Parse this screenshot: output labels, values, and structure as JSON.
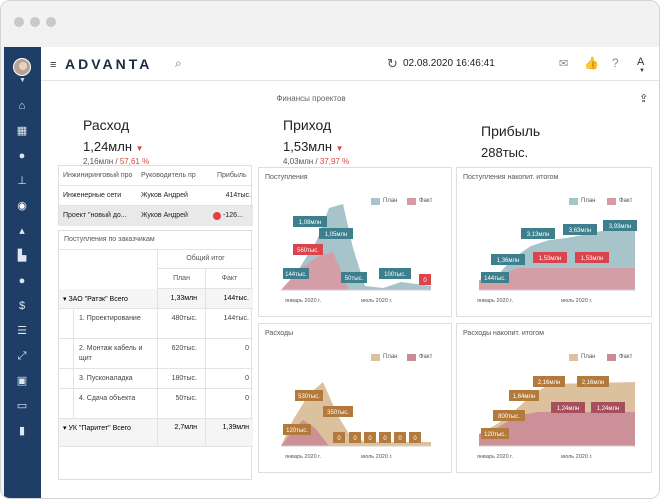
{
  "window": {
    "title": ""
  },
  "header": {
    "logo": "ADVANTA",
    "datetime": "02.08.2020 16:46:41"
  },
  "page": {
    "title": "Финансы проектов"
  },
  "kpis": [
    {
      "title": "Расход",
      "value": "1,24млн",
      "sub_plan": "2,16млн",
      "sub_pct": "57,61 %"
    },
    {
      "title": "Приход",
      "value": "1,53млн",
      "sub_plan": "4,03млн",
      "sub_pct": "37,97 %"
    },
    {
      "title": "Прибыль",
      "value": "288тыс."
    }
  ],
  "projects_table": {
    "headers": [
      "Инжиниринговый про",
      "Руководитель пр",
      "Прибыль"
    ],
    "rows": [
      {
        "name": "Инженерные сети",
        "manager": "Жуков Андрей",
        "profit": "414тыс."
      },
      {
        "name": "Проект \"новый до...",
        "manager": "Жуков Андрей",
        "profit": "-126..."
      }
    ]
  },
  "customers_table": {
    "title": "Поступления по заказчикам",
    "group_header": "Общий итог",
    "col_plan": "План",
    "col_fact": "Факт",
    "rows": [
      {
        "label": "▾ ЗАО \"Ратэк\" Всего",
        "plan": "1,33млн",
        "fact": "144тыс.",
        "level": 0
      },
      {
        "label": "1. Проектирование",
        "plan": "480тыс.",
        "fact": "144тыс.",
        "level": 1
      },
      {
        "label": "2. Монтаж кабель и щит",
        "plan": "620тыс.",
        "fact": "0",
        "level": 1
      },
      {
        "label": "3. Пусконаладка",
        "plan": "180тыс.",
        "fact": "0",
        "level": 1
      },
      {
        "label": "4. Сдача объекта",
        "plan": "50тыс.",
        "fact": "0",
        "level": 1
      },
      {
        "label": "▾ УК \"Паритет\" Всего",
        "plan": "2,7млн",
        "fact": "1,39млн",
        "level": 0
      }
    ]
  },
  "legend": {
    "plan": "План",
    "fact": "Факт"
  },
  "colors": {
    "sidebar": "#1f3e66",
    "plan_teal": "#a7c4cb",
    "fact_pink": "#d99aa3",
    "label_teal": "#3d7f8c",
    "label_red": "#d9444d",
    "plan_tan": "#dcc19e",
    "fact_rose": "#c98b97",
    "label_brown": "#b47a3c"
  },
  "axis_labels": {
    "jan": "январь 2020 г.",
    "jul": "июль 2020 г."
  },
  "chart_data": [
    {
      "type": "area",
      "title": "Поступления",
      "x": [
        "январь 2020 г.",
        "июль 2020 г."
      ],
      "labels_plan": [
        "1,08млн",
        "1,05млн",
        "560тыс.",
        "144тыс.",
        "50тыс.",
        "100тыс."
      ],
      "labels_fact": [
        "560тыс.",
        "0"
      ]
    },
    {
      "type": "area",
      "title": "Поступления накопит. итогом",
      "x": [
        "январь 2020 г.",
        "июль 2020 г."
      ],
      "labels_plan": [
        "3,13млн",
        "3,63млн",
        "3,93млн",
        "1,36млн",
        "144тыс."
      ],
      "labels_fact": [
        "1,53млн",
        "1,53млн"
      ]
    },
    {
      "type": "area",
      "title": "Расходы",
      "x": [
        "январь 2020 г.",
        "июль 2020 г."
      ],
      "labels": [
        "530тыс.",
        "350тыс.",
        "120тыс.",
        "0",
        "0",
        "0",
        "0",
        "0",
        "0"
      ],
      "labels_fact": [
        "120тыс."
      ]
    },
    {
      "type": "area",
      "title": "Расходы накопит. итогом",
      "x": [
        "январь 2020 г.",
        "июль 2020 г."
      ],
      "labels": [
        "2,16млн",
        "2,16млн",
        "1,64млн",
        "800тыс.",
        "120тыс."
      ],
      "labels_fact": [
        "1,24млн",
        "1,24млн"
      ]
    }
  ]
}
